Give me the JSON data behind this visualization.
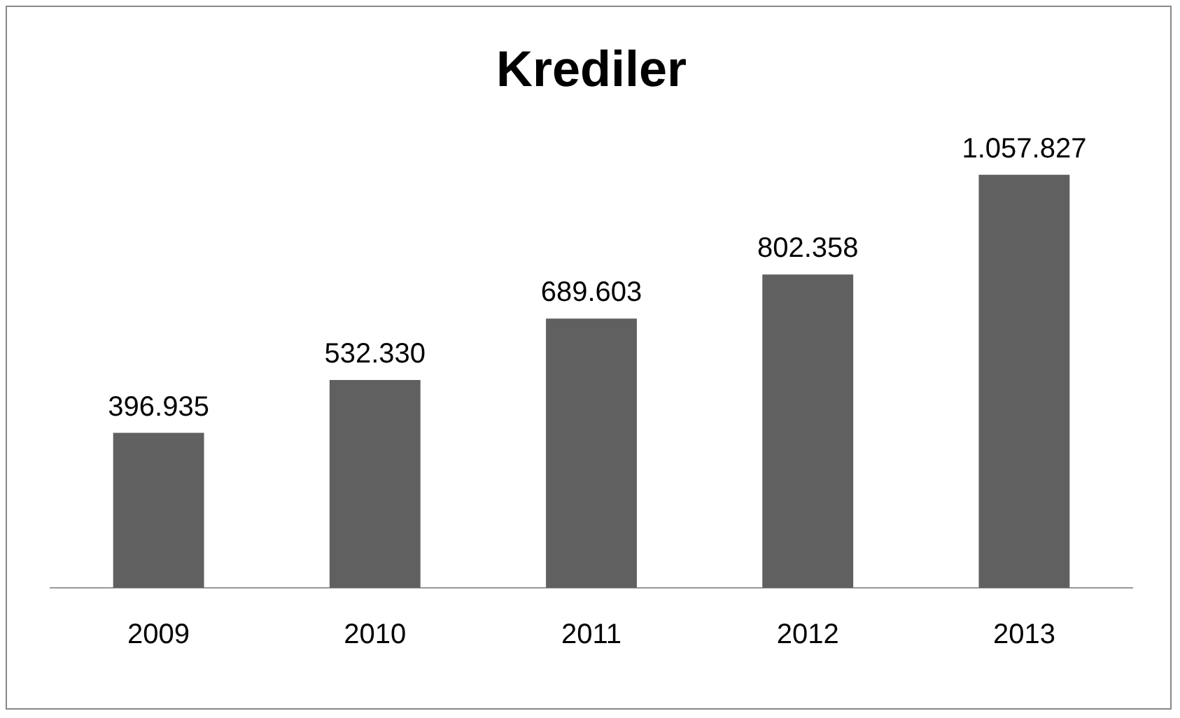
{
  "chart_data": {
    "type": "bar",
    "title": "Krediler",
    "categories": [
      "2009",
      "2010",
      "2011",
      "2012",
      "2013"
    ],
    "values": [
      396935,
      532330,
      689603,
      802358,
      1057827
    ],
    "value_labels": [
      "396.935",
      "532.330",
      "689.603",
      "802.358",
      "1.057.827"
    ],
    "color": "#606060",
    "grid": false,
    "legend": false
  }
}
